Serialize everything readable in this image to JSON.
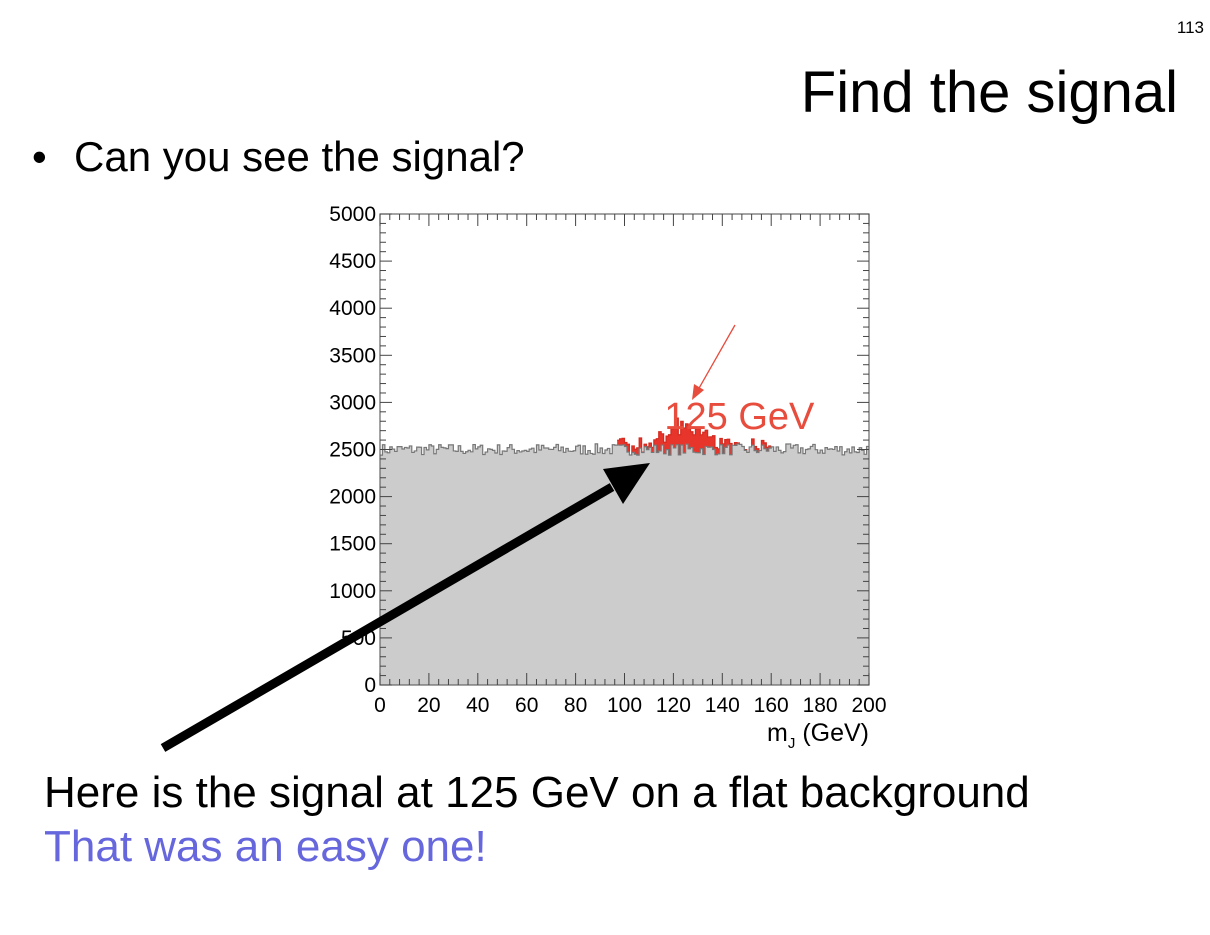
{
  "slide": {
    "page_number": "113",
    "title": "Find the signal",
    "bullet_symbol": "•",
    "bullet": "Can you see the signal?",
    "caption_line1": "Here is the signal at 125 GeV on a flat background",
    "caption_line2": "That was an easy one!",
    "caption_line2_color": "#6666dd"
  },
  "chart_data": {
    "type": "area",
    "title": "",
    "xlabel_main": "m",
    "xlabel_sub": "J",
    "xlabel_unit": " (GeV)",
    "ylabel": "",
    "xlim": [
      0,
      200
    ],
    "ylim": [
      0,
      5000
    ],
    "xticks": [
      0,
      20,
      40,
      60,
      80,
      100,
      120,
      140,
      160,
      180,
      200
    ],
    "xtick_labels": [
      "0",
      "20",
      "40",
      "60",
      "80",
      "100",
      "120",
      "140",
      "160",
      "180",
      "200"
    ],
    "yticks": [
      0,
      500,
      1000,
      1500,
      2000,
      2500,
      3000,
      3500,
      4000,
      4500,
      5000
    ],
    "ytick_labels": [
      "0",
      "500",
      "1000",
      "1500",
      "2000",
      "2500",
      "3000",
      "3500",
      "4000",
      "4500",
      "5000"
    ],
    "grid": false,
    "legend": "none",
    "background": {
      "name": "background",
      "bins": 200,
      "bin_width": 1,
      "level": 2500,
      "fluctuation": 60,
      "fill_color": "#cccccc",
      "line_color": "#777777"
    },
    "signal": {
      "name": "signal",
      "mass": 125,
      "range": [
        97,
        160
      ],
      "peak_height": 2730,
      "fill_color": "#e8352b",
      "line_color": "#d42a20"
    },
    "annotation": {
      "text": "125 GeV",
      "x": 147,
      "y": 2800,
      "color": "#e84c3d"
    }
  }
}
